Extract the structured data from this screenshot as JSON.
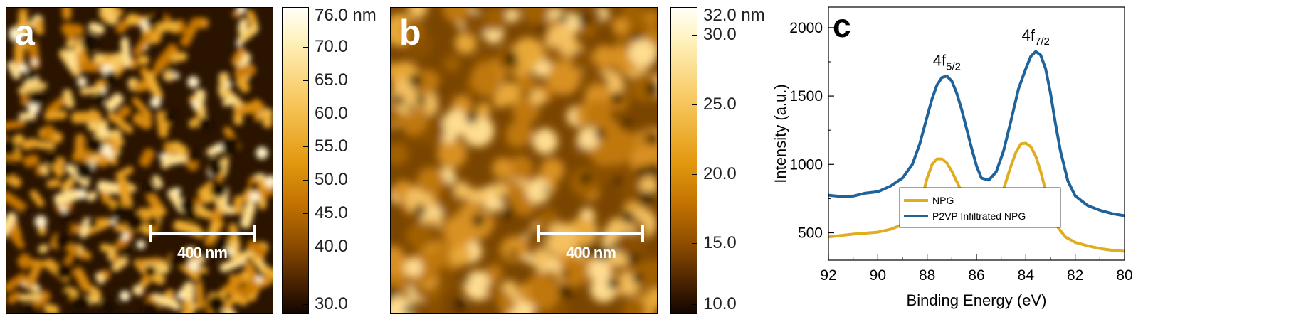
{
  "panels": {
    "a": {
      "letter": "a",
      "scale_bar_label": "400 nm",
      "colorbar_labels": [
        "76.0 nm",
        "70.0",
        "65.0",
        "60.0",
        "55.0",
        "50.0",
        "45.0",
        "40.0",
        "30.0"
      ],
      "colorbar_values": [
        76.0,
        70.0,
        65.0,
        60.0,
        55.0,
        50.0,
        45.0,
        40.0,
        30.0
      ],
      "colorbar_range": [
        30.0,
        76.0
      ]
    },
    "b": {
      "letter": "b",
      "scale_bar_label": "400 nm",
      "colorbar_labels": [
        "32.0 nm",
        "30.0",
        "25.0",
        "20.0",
        "15.0",
        "10.0"
      ],
      "colorbar_values": [
        32.0,
        30.0,
        25.0,
        20.0,
        15.0,
        10.0
      ],
      "colorbar_range": [
        10.0,
        32.0
      ]
    },
    "c": {
      "letter": "c"
    }
  },
  "colors": {
    "npg": "#e0ad1e",
    "p2vp": "#1f639a",
    "afm_dark": "#1a0c00",
    "afm_mid": "#c87a00",
    "afm_light": "#fff8d8"
  },
  "chart_data": {
    "type": "line",
    "xlabel": "Binding Energy (eV)",
    "ylabel": "Intensity (a.u.)",
    "xlim": [
      92,
      80
    ],
    "ylim": [
      300,
      2150
    ],
    "x_reversed": true,
    "xticks": [
      92,
      90,
      88,
      86,
      84,
      82,
      80
    ],
    "yticks": [
      500,
      1000,
      1500,
      2000
    ],
    "legend_position": "bottom-left",
    "annotations": [
      {
        "base": "4f",
        "sub": "5/2",
        "x": 87.2,
        "y": 1720
      },
      {
        "base": "4f",
        "sub": "7/2",
        "x": 83.6,
        "y": 1905
      }
    ],
    "series": [
      {
        "name": "NPG",
        "x": [
          92,
          91,
          90,
          89.5,
          89,
          88.5,
          88.2,
          88,
          87.8,
          87.6,
          87.4,
          87.2,
          87,
          86.6,
          86.2,
          86,
          85.8,
          85.5,
          85.2,
          84.9,
          84.6,
          84.4,
          84.2,
          84,
          83.8,
          83.6,
          83.4,
          83.2,
          83,
          82.7,
          82.4,
          82,
          81.5,
          81,
          80.5,
          80
        ],
        "y": [
          470,
          490,
          505,
          525,
          560,
          640,
          760,
          900,
          1000,
          1040,
          1040,
          1010,
          950,
          800,
          640,
          595,
          580,
          600,
          670,
          820,
          990,
          1090,
          1150,
          1155,
          1130,
          1060,
          950,
          810,
          670,
          540,
          470,
          430,
          405,
          385,
          372,
          365
        ]
      },
      {
        "name": "P2VP Infiltrated NPG",
        "x": [
          92,
          91.5,
          91,
          90.5,
          90,
          89.5,
          89,
          88.6,
          88.3,
          88,
          87.8,
          87.6,
          87.4,
          87.2,
          87,
          86.8,
          86.6,
          86.2,
          86,
          85.8,
          85.5,
          85.2,
          84.9,
          84.6,
          84.3,
          84,
          83.8,
          83.6,
          83.4,
          83.2,
          83,
          82.8,
          82.6,
          82.3,
          82,
          81.5,
          81,
          80.5,
          80
        ],
        "y": [
          775,
          765,
          768,
          790,
          800,
          840,
          900,
          1000,
          1150,
          1350,
          1480,
          1580,
          1635,
          1645,
          1610,
          1520,
          1400,
          1120,
          990,
          900,
          885,
          945,
          1100,
          1320,
          1550,
          1700,
          1790,
          1825,
          1800,
          1700,
          1520,
          1300,
          1100,
          880,
          770,
          700,
          665,
          640,
          625
        ]
      }
    ]
  }
}
